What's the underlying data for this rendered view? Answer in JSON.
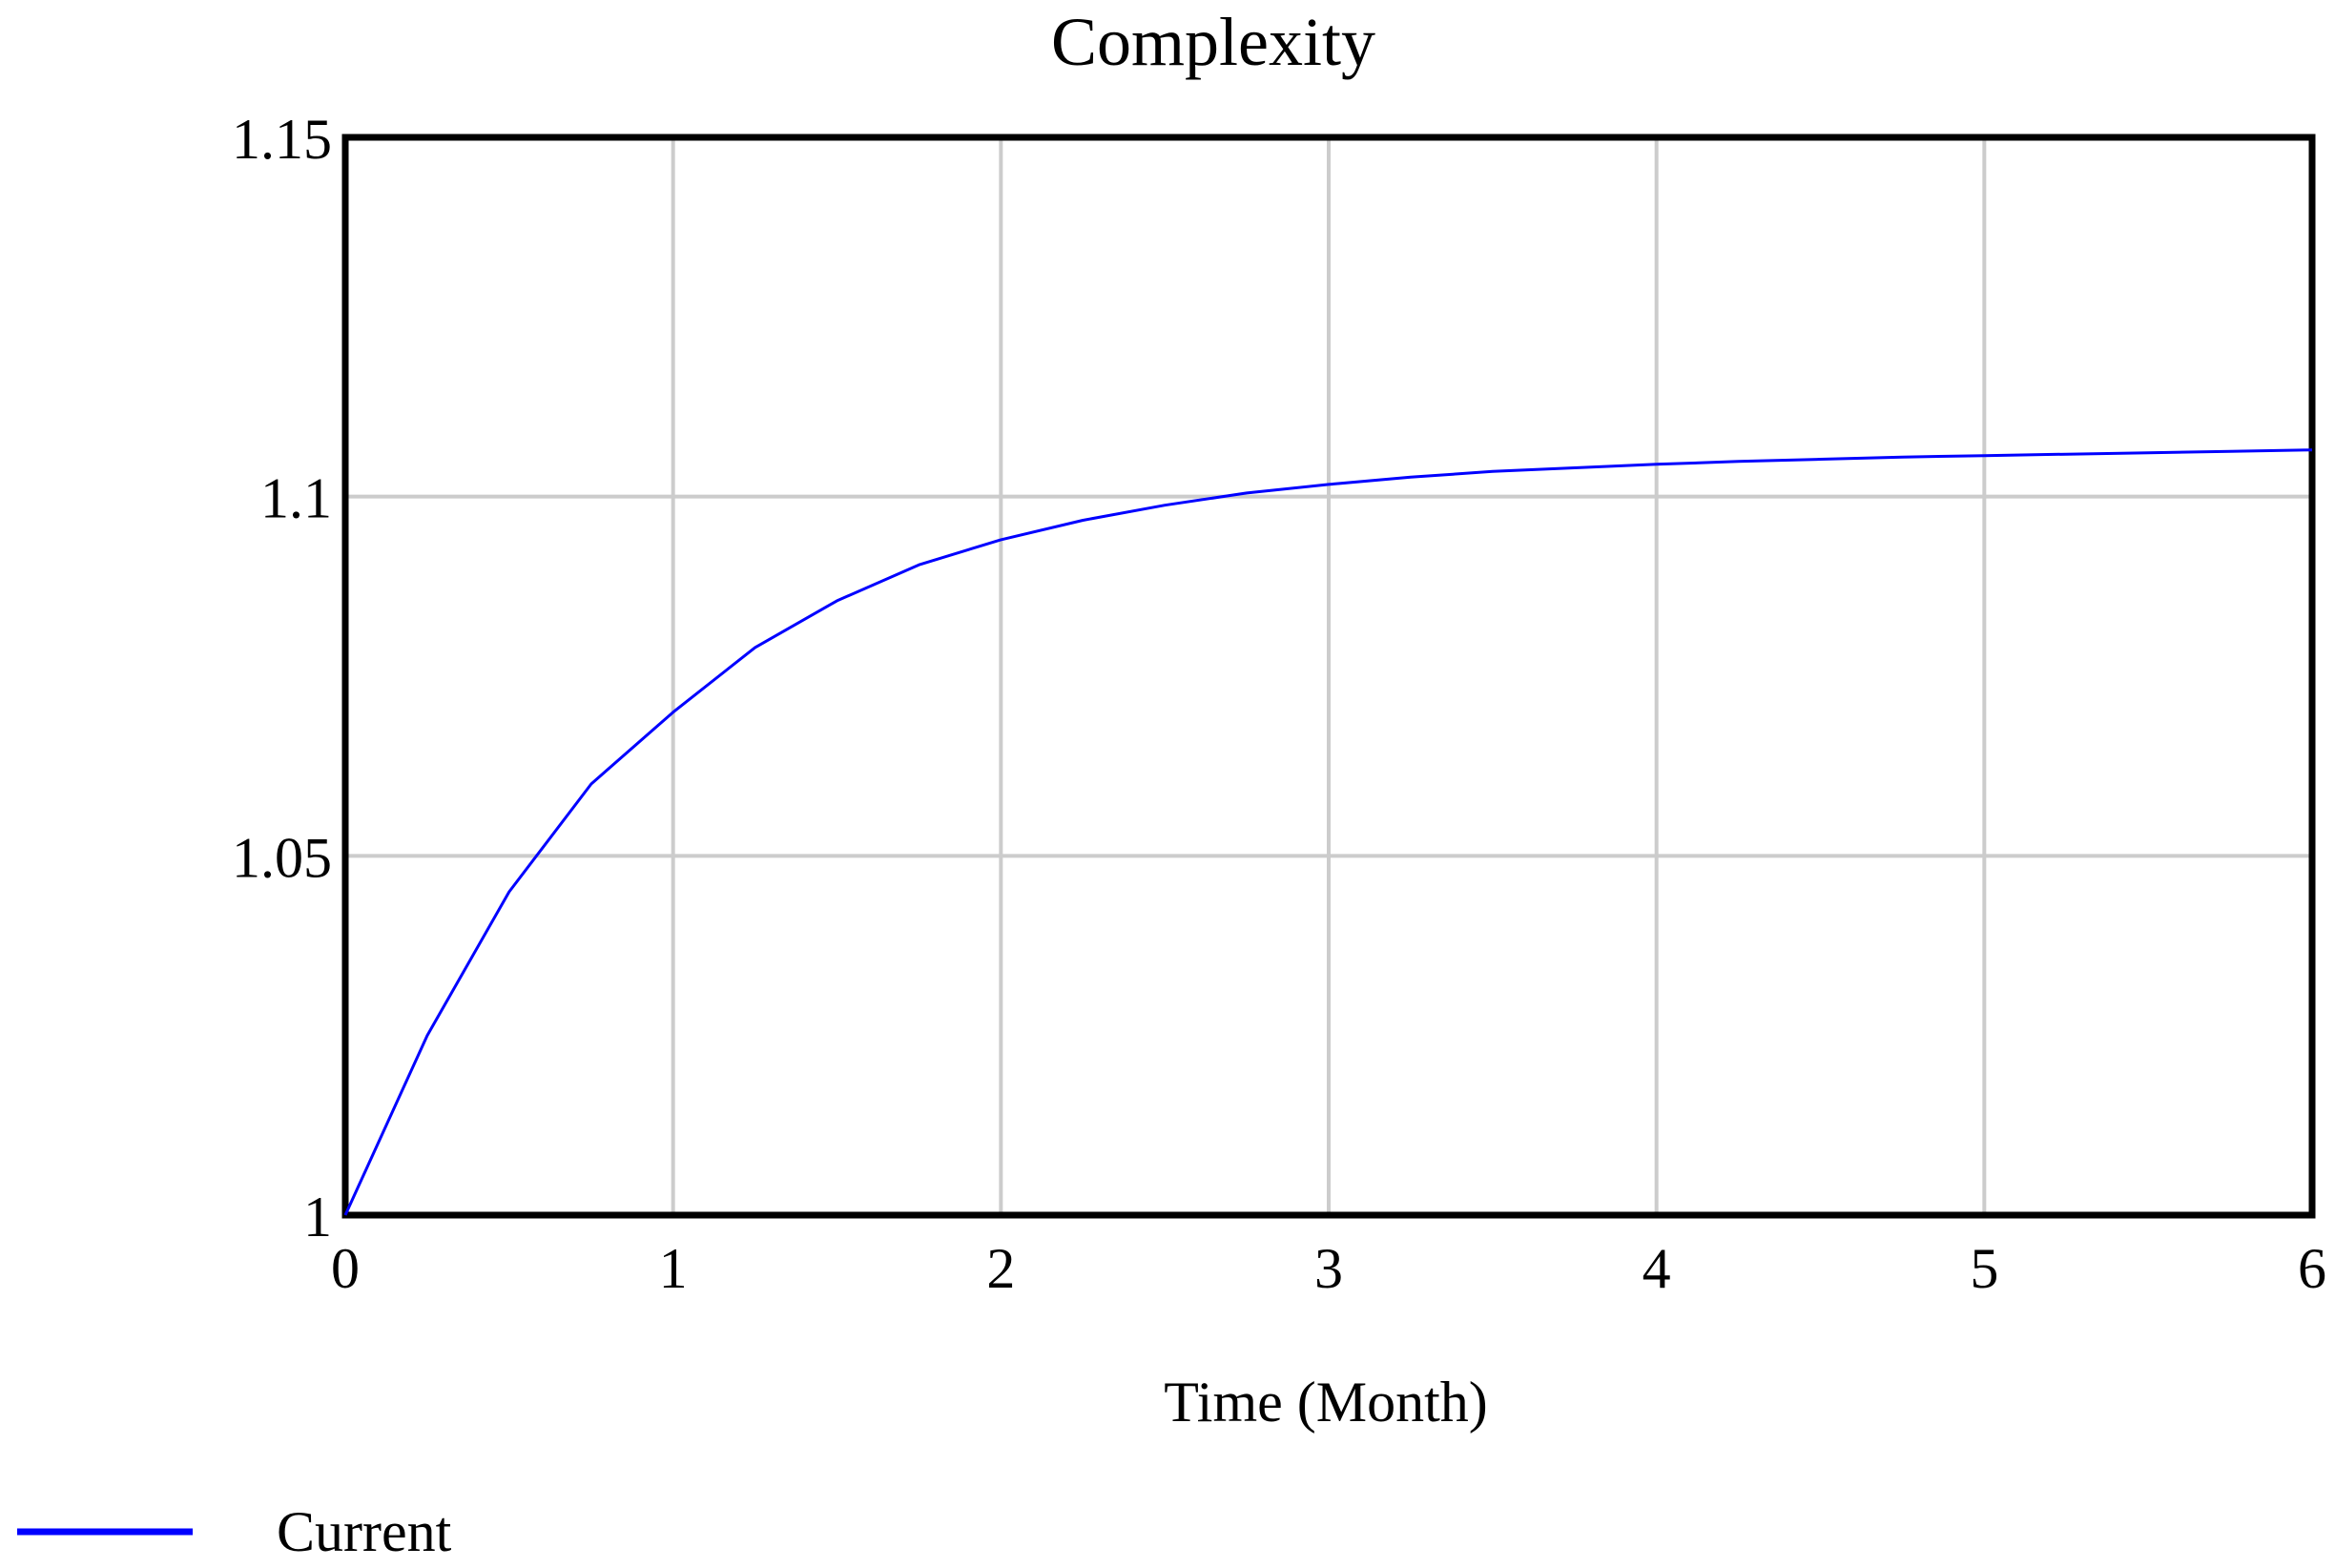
{
  "chart_data": {
    "type": "line",
    "title": "Complexity",
    "xlabel": "Time (Month)",
    "ylabel": "",
    "xlim": [
      0,
      6
    ],
    "ylim": [
      1,
      1.15
    ],
    "x_ticks": [
      0,
      1,
      2,
      3,
      4,
      5,
      6
    ],
    "x_tick_labels": [
      "0",
      "1",
      "2",
      "3",
      "4",
      "5",
      "6"
    ],
    "y_ticks": [
      1,
      1.05,
      1.1,
      1.15
    ],
    "y_tick_labels": [
      "1",
      "1.05",
      "1.1",
      "1.15"
    ],
    "grid": true,
    "legend_position": "bottom-left",
    "series": [
      {
        "name": "Current",
        "color": "#0000ff",
        "x": [
          0,
          0.25,
          0.5,
          0.75,
          1,
          1.25,
          1.5,
          1.75,
          2,
          2.25,
          2.5,
          2.75,
          3,
          3.25,
          3.5,
          3.75,
          4,
          4.25,
          4.5,
          4.75,
          5,
          5.25,
          5.5,
          5.75,
          6
        ],
        "values": [
          1.0,
          1.025,
          1.045,
          1.06,
          1.07,
          1.079,
          1.0855,
          1.0905,
          1.094,
          1.0967,
          1.0988,
          1.1005,
          1.1017,
          1.1027,
          1.1035,
          1.104,
          1.1045,
          1.1049,
          1.1052,
          1.1055,
          1.1057,
          1.1059,
          1.1061,
          1.1063,
          1.1065
        ]
      }
    ]
  }
}
